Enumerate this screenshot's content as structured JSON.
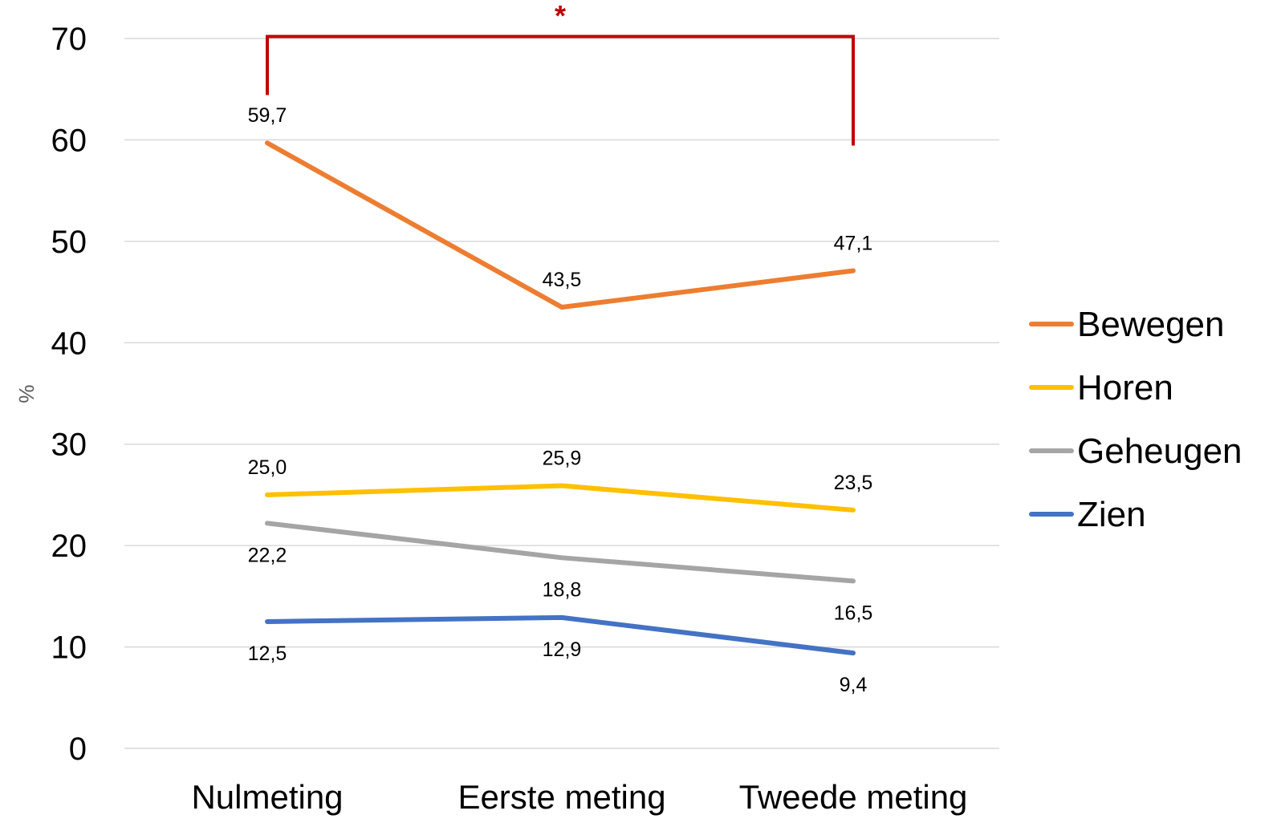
{
  "chart_data": {
    "type": "line",
    "ylabel": "%",
    "ylim": [
      0,
      70
    ],
    "yticks": [
      "0",
      "10",
      "20",
      "30",
      "40",
      "50",
      "60",
      "70"
    ],
    "categories": [
      "Nulmeting",
      "Eerste meting",
      "Tweede meting"
    ],
    "series": [
      {
        "name": "Bewegen",
        "color": "#ed7d31",
        "values": [
          59.7,
          43.5,
          47.1
        ],
        "labels": [
          "59,7",
          "43,5",
          "47,1"
        ],
        "label_position": "above"
      },
      {
        "name": "Horen",
        "color": "#ffc000",
        "values": [
          25.0,
          25.9,
          23.5
        ],
        "labels": [
          "25,0",
          "25,9",
          "23,5"
        ],
        "label_position": "above"
      },
      {
        "name": "Geheugen",
        "color": "#a5a5a5",
        "values": [
          22.2,
          18.8,
          16.5
        ],
        "labels": [
          "22,2",
          "18,8",
          "16,5"
        ],
        "label_position": "below"
      },
      {
        "name": "Zien",
        "color": "#4472c4",
        "values": [
          12.5,
          12.9,
          9.4
        ],
        "labels": [
          "12,5",
          "12,9",
          "9,4"
        ],
        "label_position": "below"
      }
    ],
    "significance": {
      "symbol": "*",
      "color": "#c00000",
      "from_category": "Nulmeting",
      "to_category": "Tweede meting"
    },
    "grid": true,
    "legend_position": "right"
  }
}
